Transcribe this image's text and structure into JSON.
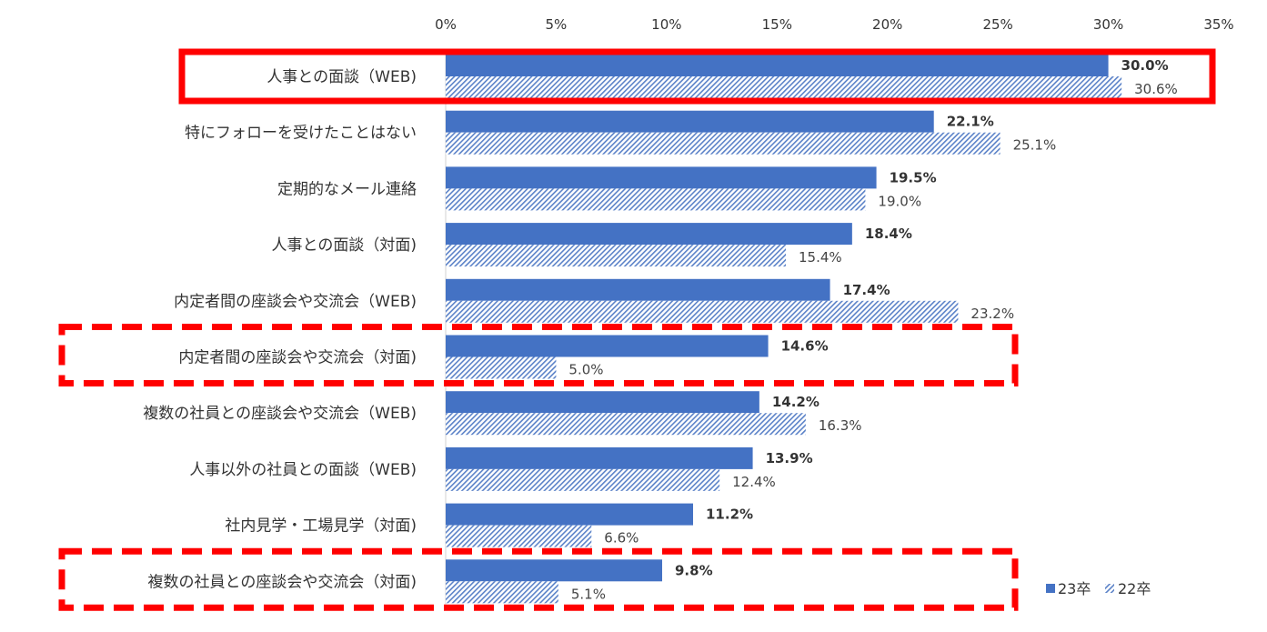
{
  "chart_data": {
    "type": "bar",
    "orientation": "horizontal",
    "title": "",
    "xlabel": "",
    "ylabel": "",
    "xlim": [
      0,
      35
    ],
    "x_ticks": [
      0,
      5,
      10,
      15,
      20,
      25,
      30,
      35
    ],
    "x_tick_labels": [
      "0%",
      "5%",
      "10%",
      "15%",
      "20%",
      "25%",
      "30%",
      "35%"
    ],
    "grid": false,
    "legend_position": "bottom-right",
    "categories": [
      "人事との面談（WEB)",
      "特にフォローを受けたことはない",
      "定期的なメール連絡",
      "人事との面談（対面)",
      "内定者間の座談会や交流会（WEB)",
      "内定者間の座談会や交流会（対面)",
      "複数の社員との座談会や交流会（WEB)",
      "人事以外の社員との面談（WEB)",
      "社内見学・工場見学（対面)",
      "複数の社員との座談会や交流会（対面)"
    ],
    "series": [
      {
        "name": "23卒",
        "color": "#4472c4",
        "pattern": "solid",
        "values": [
          30.0,
          22.1,
          19.5,
          18.4,
          17.4,
          14.6,
          14.2,
          13.9,
          11.2,
          9.8
        ],
        "labels": [
          "30.0%",
          "22.1%",
          "19.5%",
          "18.4%",
          "17.4%",
          "14.6%",
          "14.2%",
          "13.9%",
          "11.2%",
          "9.8%"
        ]
      },
      {
        "name": "22卒",
        "color": "#4472c4",
        "pattern": "diagonal-hatch",
        "values": [
          30.6,
          25.1,
          19.0,
          15.4,
          23.2,
          5.0,
          16.3,
          12.4,
          6.6,
          5.1
        ],
        "labels": [
          "30.6%",
          "25.1%",
          "19.0%",
          "15.4%",
          "23.2%",
          "5.0%",
          "16.3%",
          "12.4%",
          "6.6%",
          "5.1%"
        ]
      }
    ],
    "highlights": [
      {
        "category_index": 0,
        "style": "solid",
        "color": "#ff0000"
      },
      {
        "category_index": 5,
        "style": "dashed",
        "color": "#ff0000"
      },
      {
        "category_index": 9,
        "style": "dashed",
        "color": "#ff0000"
      }
    ]
  }
}
